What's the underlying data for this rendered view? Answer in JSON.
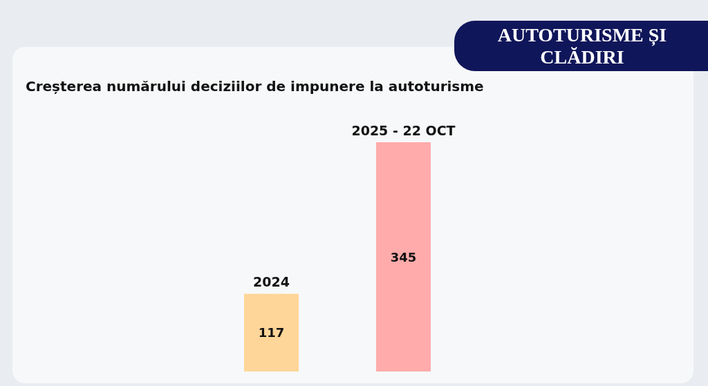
{
  "chart_data": {
    "type": "bar",
    "title": "AUTOTURISME ȘI CLĂDIRI",
    "subtitle": "Creșterea numărului deciziilor de impunere la autoturisme",
    "categories": [
      "2024",
      "2025 - 22 OCT"
    ],
    "values": [
      117,
      345
    ],
    "colors": [
      "#ffd699",
      "#ffabab"
    ],
    "data_labels": true
  }
}
